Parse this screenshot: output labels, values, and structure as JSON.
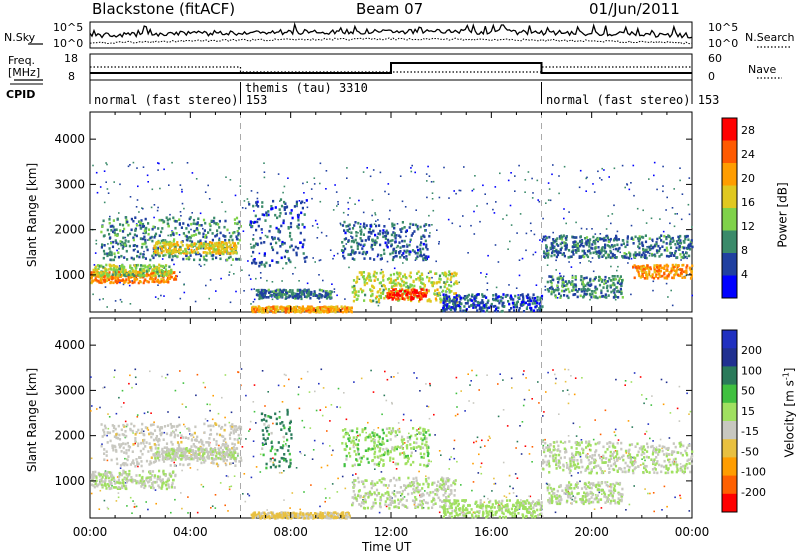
{
  "header": {
    "station": "Blackstone (fitACF)",
    "beam": "Beam 07",
    "date": "01/Jun/2011"
  },
  "status_panel": {
    "nsky_label": "N.Sky",
    "nsearch_label": "N.Search",
    "freq_label_1": "Freq.",
    "freq_label_2": "[MHz]",
    "nave_label": "Nave",
    "cpid_label": "CPID",
    "noise_ticks": [
      "10^5",
      "10^0"
    ],
    "noise_ticks_right": [
      "10^5",
      "10^0"
    ],
    "freq_ticks": [
      "18",
      "8"
    ],
    "nave_ticks": [
      "60",
      "0"
    ],
    "modes": [
      {
        "name": "normal (fast stereo)",
        "cpid": "153",
        "start_hour": 0,
        "end_hour": 6
      },
      {
        "name": "themis (tau)",
        "cpid": "3310",
        "start_hour": 6,
        "end_hour": 18
      },
      {
        "name": "normal (fast stereo)",
        "cpid": "153",
        "start_hour": 18,
        "end_hour": 24
      }
    ]
  },
  "chart_data": [
    {
      "type": "heatmap",
      "name": "power",
      "xlabel": "Time UT",
      "ylabel": "Slant Range [km]",
      "xlim": [
        0,
        24
      ],
      "ylim": [
        180,
        4600
      ],
      "yticks": [
        1000,
        2000,
        3000,
        4000
      ],
      "colorbar_label": "Power [dB]",
      "colorbar_ticks": [
        "4",
        "8",
        "12",
        "16",
        "20",
        "24",
        "28"
      ],
      "colorbar_range": [
        0,
        30
      ],
      "colors": [
        "#0000ff",
        "#2040a0",
        "#3a8a6a",
        "#7fd24a",
        "#e0c820",
        "#ff9d00",
        "#ff5a00",
        "#ff0000"
      ],
      "blobs": [
        {
          "t0": 0.0,
          "t1": 3.4,
          "r0": 850,
          "r1": 1100,
          "level": 22
        },
        {
          "t0": 0.4,
          "t1": 6.0,
          "r0": 1350,
          "r1": 2300,
          "level": 9
        },
        {
          "t0": 2.5,
          "t1": 5.8,
          "r0": 1500,
          "r1": 1750,
          "level": 17
        },
        {
          "t0": 0.1,
          "t1": 3.2,
          "r0": 1000,
          "r1": 1250,
          "level": 14
        },
        {
          "t0": 6.3,
          "t1": 8.6,
          "r0": 1200,
          "r1": 2700,
          "level": 6
        },
        {
          "t0": 6.4,
          "t1": 10.4,
          "r0": 200,
          "r1": 330,
          "level": 20
        },
        {
          "t0": 10.0,
          "t1": 13.5,
          "r0": 1350,
          "r1": 2200,
          "level": 7
        },
        {
          "t0": 10.4,
          "t1": 14.6,
          "r0": 420,
          "r1": 1100,
          "level": 15
        },
        {
          "t0": 11.8,
          "t1": 13.4,
          "r0": 480,
          "r1": 720,
          "level": 26
        },
        {
          "t0": 6.6,
          "t1": 9.6,
          "r0": 500,
          "r1": 700,
          "level": 8
        },
        {
          "t0": 18.0,
          "t1": 24.0,
          "r0": 1400,
          "r1": 1900,
          "level": 8
        },
        {
          "t0": 21.6,
          "t1": 24.0,
          "r0": 950,
          "r1": 1250,
          "level": 21
        },
        {
          "t0": 18.2,
          "t1": 21.2,
          "r0": 520,
          "r1": 1000,
          "level": 9
        },
        {
          "t0": 14.0,
          "t1": 18.0,
          "r0": 220,
          "r1": 600,
          "level": 6
        }
      ]
    },
    {
      "type": "heatmap",
      "name": "velocity",
      "xlabel": "Time UT",
      "ylabel": "Slant Range [km]",
      "xlim": [
        0,
        24
      ],
      "ylim": [
        180,
        4600
      ],
      "yticks": [
        1000,
        2000,
        3000,
        4000
      ],
      "colorbar_label": "Velocity [m s^-1]",
      "colorbar_ticks": [
        "200",
        "100",
        "50",
        "15",
        "-15",
        "-50",
        "-100",
        "-200"
      ],
      "colorbar_range": [
        -250,
        250
      ],
      "colors": [
        "#ff0000",
        "#ff6000",
        "#ff9d00",
        "#e8c040",
        "#c8c8c0",
        "#a0e060",
        "#40c040",
        "#2a7a5a",
        "#203090",
        "#2030c0"
      ],
      "blobs": [
        {
          "t0": 0.0,
          "t1": 3.4,
          "r0": 850,
          "r1": 1250,
          "level": 0
        },
        {
          "t0": 0.4,
          "t1": 6.0,
          "r0": 1350,
          "r1": 2300,
          "level": -35
        },
        {
          "t0": 2.5,
          "t1": 5.8,
          "r0": 1500,
          "r1": 1750,
          "level": 0
        },
        {
          "t0": 6.8,
          "t1": 8.0,
          "r0": 1300,
          "r1": 2600,
          "level": 110
        },
        {
          "t0": 6.4,
          "t1": 10.4,
          "r0": 200,
          "r1": 330,
          "level": -60
        },
        {
          "t0": 10.0,
          "t1": 13.5,
          "r0": 1350,
          "r1": 2200,
          "level": 40
        },
        {
          "t0": 10.4,
          "t1": 14.6,
          "r0": 420,
          "r1": 1100,
          "level": 0
        },
        {
          "t0": 18.0,
          "t1": 24.0,
          "r0": 1200,
          "r1": 1900,
          "level": 0
        },
        {
          "t0": 18.2,
          "t1": 21.2,
          "r0": 520,
          "r1": 1000,
          "level": 0
        },
        {
          "t0": 14.0,
          "t1": 18.0,
          "r0": 220,
          "r1": 600,
          "level": 25
        }
      ]
    }
  ],
  "time_axis": {
    "ticks": [
      "00:00",
      "04:00",
      "08:00",
      "12:00",
      "16:00",
      "20:00",
      "00:00"
    ],
    "label": "Time UT"
  }
}
